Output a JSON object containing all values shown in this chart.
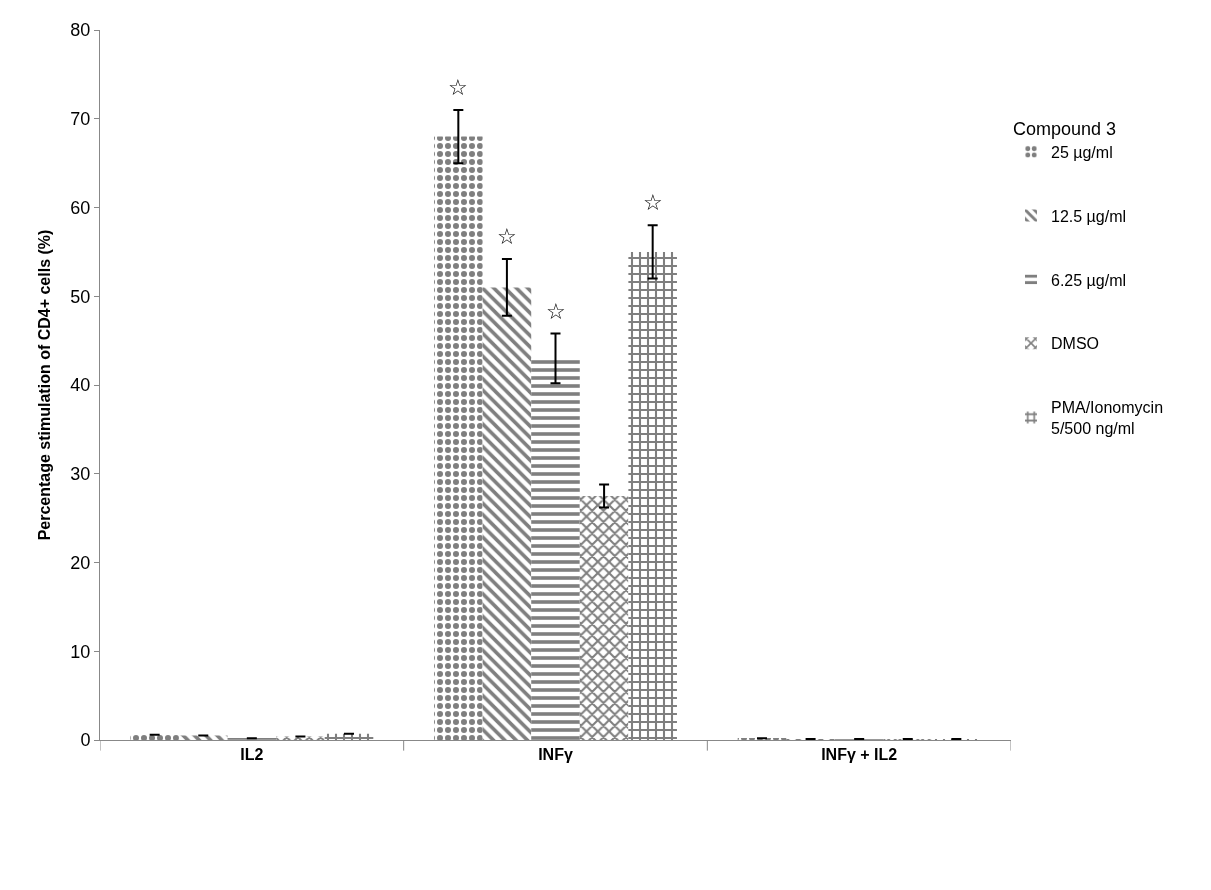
{
  "chart_data": {
    "type": "bar",
    "ylabel": "Percentage stimulation of CD4+ cells (%)",
    "legend_title": "Compound 3",
    "categories": [
      "IL2",
      "INFγ",
      "INFγ + IL2"
    ],
    "series": [
      {
        "name": "25 µg/ml",
        "color": "#000000",
        "values": [
          0.6,
          68,
          0.2
        ],
        "errors": [
          null,
          3,
          null
        ],
        "value_labels": [
          null,
          "☆",
          null
        ]
      },
      {
        "name": "12.5 µg/ml",
        "color": "#000000",
        "values": [
          0.5,
          51,
          0.1
        ],
        "errors": [
          null,
          3.2,
          null
        ],
        "value_labels": [
          null,
          "☆",
          null
        ]
      },
      {
        "name": "6.25 µg/ml",
        "color": "#000000",
        "values": [
          0.2,
          43,
          0.1
        ],
        "errors": [
          null,
          2.8,
          null
        ],
        "value_labels": [
          null,
          "☆",
          null
        ]
      },
      {
        "name": "DMSO",
        "color": "#000000",
        "values": [
          0.4,
          27.5,
          0.1
        ],
        "errors": [
          null,
          1.3,
          null
        ]
      },
      {
        "name": "PMA/Ionomycin\n5/500 ng/ml",
        "color": "#000000",
        "values": [
          0.7,
          55,
          0.1
        ],
        "errors": [
          null,
          3,
          null
        ],
        "value_labels": [
          null,
          "☆",
          null
        ]
      }
    ],
    "ylim": [
      0,
      80
    ],
    "yticks": [
      0,
      10,
      20,
      30,
      40,
      50,
      60,
      70,
      80
    ],
    "legend": "right"
  }
}
